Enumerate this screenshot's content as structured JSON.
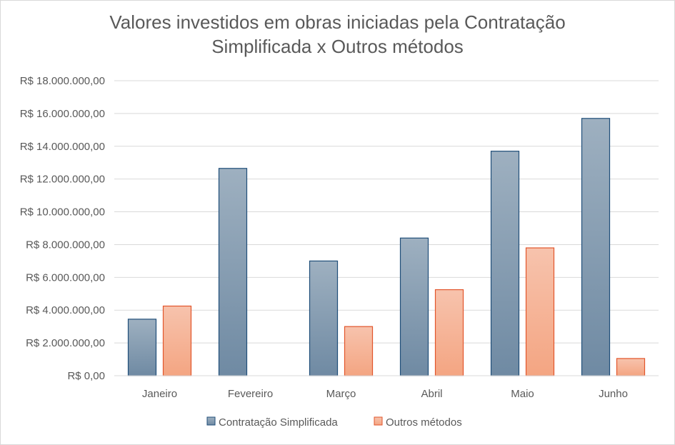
{
  "chart_data": {
    "type": "bar",
    "title_line1": "Valores investidos em obras iniciadas pela Contratação",
    "title_line2": "Simplificada x Outros métodos",
    "categories": [
      "Janeiro",
      "Fevereiro",
      "Março",
      "Abril",
      "Maio",
      "Junho"
    ],
    "series": [
      {
        "name": "Contratação Simplificada",
        "values": [
          3450000,
          12650000,
          7000000,
          8400000,
          13700000,
          15700000
        ],
        "color_top": "#9eb0c0",
        "color_bottom": "#6f8aa3",
        "stroke": "#1f4e79"
      },
      {
        "name": "Outros métodos",
        "values": [
          4250000,
          0,
          3000000,
          5250000,
          7800000,
          1050000
        ],
        "color_top": "#f7c3ad",
        "color_bottom": "#f4a582",
        "stroke": "#e2552b"
      }
    ],
    "y_ticks": [
      "R$ 0,00",
      "R$ 2.000.000,00",
      "R$ 4.000.000,00",
      "R$ 6.000.000,00",
      "R$ 8.000.000,00",
      "R$ 10.000.000,00",
      "R$ 12.000.000,00",
      "R$ 14.000.000,00",
      "R$ 16.000.000,00",
      "R$ 18.000.000,00"
    ],
    "ylim": [
      0,
      18000000
    ],
    "y_step": 2000000,
    "grid": true,
    "legend_position": "bottom",
    "gridline_color": "#d9d9d9"
  }
}
